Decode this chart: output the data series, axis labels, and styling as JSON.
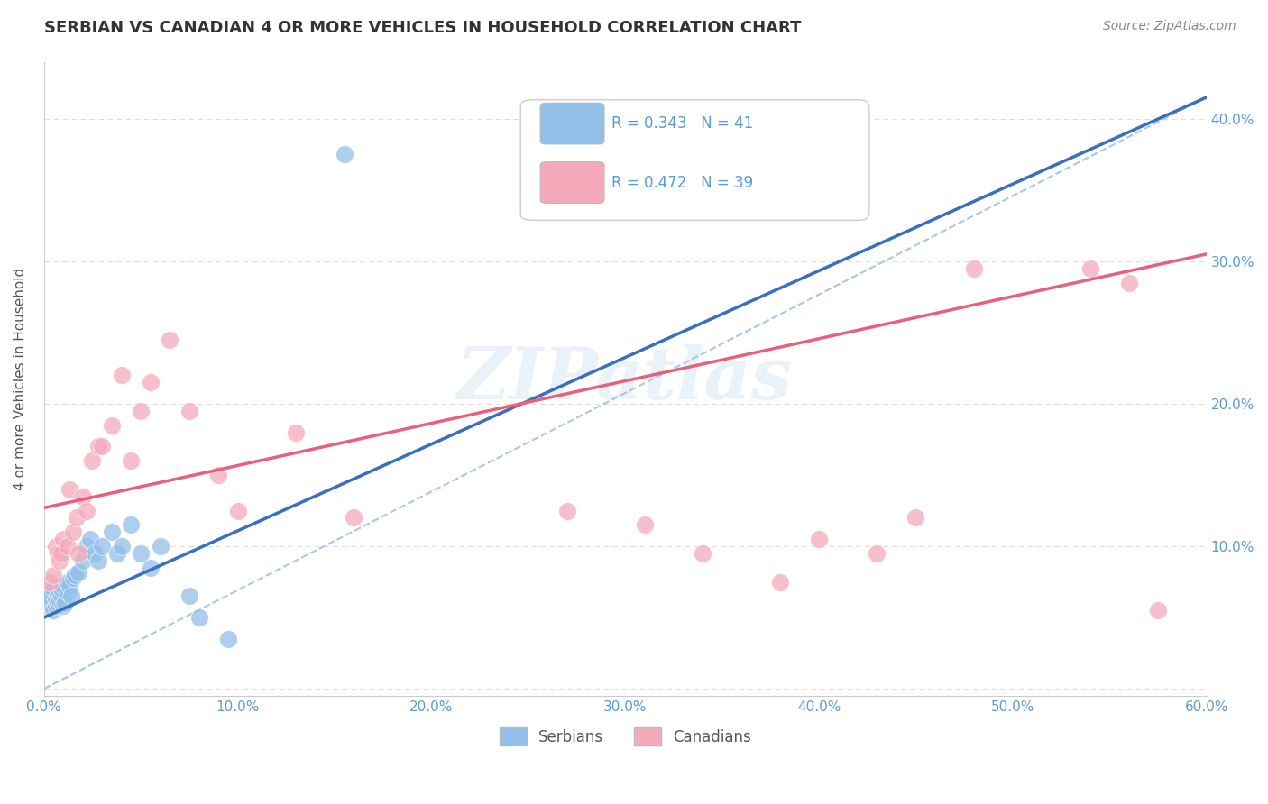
{
  "title": "SERBIAN VS CANADIAN 4 OR MORE VEHICLES IN HOUSEHOLD CORRELATION CHART",
  "source": "Source: ZipAtlas.com",
  "ylabel": "4 or more Vehicles in Household",
  "xlim": [
    0.0,
    0.6
  ],
  "ylim": [
    -0.005,
    0.44
  ],
  "xticks": [
    0.0,
    0.1,
    0.2,
    0.3,
    0.4,
    0.5,
    0.6
  ],
  "yticks": [
    0.0,
    0.1,
    0.2,
    0.3,
    0.4
  ],
  "xticklabels": [
    "0.0%",
    "10.0%",
    "20.0%",
    "30.0%",
    "40.0%",
    "50.0%",
    "60.0%"
  ],
  "yticklabels": [
    "",
    "10.0%",
    "20.0%",
    "30.0%",
    "40.0%"
  ],
  "blue_color": "#92C0E8",
  "pink_color": "#F5AABC",
  "blue_line_color": "#3A6FBF",
  "pink_line_color": "#E8607A",
  "dashed_line_color": "#A8C8E8",
  "r_blue": 0.343,
  "n_blue": 41,
  "r_pink": 0.472,
  "n_pink": 39,
  "watermark": "ZIPatlas",
  "legend_serbians": "Serbians",
  "legend_canadians": "Canadians",
  "blue_scatter_x": [
    0.002,
    0.003,
    0.004,
    0.004,
    0.005,
    0.005,
    0.006,
    0.006,
    0.007,
    0.007,
    0.008,
    0.008,
    0.009,
    0.009,
    0.01,
    0.01,
    0.011,
    0.012,
    0.012,
    0.013,
    0.014,
    0.015,
    0.016,
    0.018,
    0.02,
    0.022,
    0.024,
    0.026,
    0.028,
    0.03,
    0.035,
    0.038,
    0.04,
    0.045,
    0.05,
    0.055,
    0.06,
    0.075,
    0.08,
    0.095,
    0.155
  ],
  "blue_scatter_y": [
    0.06,
    0.065,
    0.062,
    0.068,
    0.055,
    0.07,
    0.058,
    0.063,
    0.06,
    0.065,
    0.062,
    0.068,
    0.065,
    0.07,
    0.058,
    0.072,
    0.06,
    0.068,
    0.075,
    0.072,
    0.065,
    0.078,
    0.08,
    0.082,
    0.09,
    0.1,
    0.105,
    0.095,
    0.09,
    0.1,
    0.11,
    0.095,
    0.1,
    0.115,
    0.095,
    0.085,
    0.1,
    0.065,
    0.05,
    0.035,
    0.375
  ],
  "pink_scatter_x": [
    0.003,
    0.005,
    0.006,
    0.007,
    0.008,
    0.009,
    0.01,
    0.012,
    0.013,
    0.015,
    0.017,
    0.018,
    0.02,
    0.022,
    0.025,
    0.028,
    0.03,
    0.035,
    0.04,
    0.045,
    0.05,
    0.055,
    0.065,
    0.075,
    0.09,
    0.1,
    0.13,
    0.16,
    0.27,
    0.31,
    0.34,
    0.38,
    0.4,
    0.43,
    0.45,
    0.48,
    0.54,
    0.56,
    0.575
  ],
  "pink_scatter_y": [
    0.075,
    0.08,
    0.1,
    0.095,
    0.09,
    0.095,
    0.105,
    0.1,
    0.14,
    0.11,
    0.12,
    0.095,
    0.135,
    0.125,
    0.16,
    0.17,
    0.17,
    0.185,
    0.22,
    0.16,
    0.195,
    0.215,
    0.245,
    0.195,
    0.15,
    0.125,
    0.18,
    0.12,
    0.125,
    0.115,
    0.095,
    0.075,
    0.105,
    0.095,
    0.12,
    0.295,
    0.295,
    0.285,
    0.055
  ],
  "blue_line_x0": 0.0,
  "blue_line_y0": 0.05,
  "blue_line_x1": 0.6,
  "blue_line_y1": 0.415,
  "pink_line_x0": 0.0,
  "pink_line_y0": 0.127,
  "pink_line_x1": 0.6,
  "pink_line_y1": 0.305,
  "dash_line_x0": 0.0,
  "dash_line_y0": 0.0,
  "dash_line_x1": 0.6,
  "dash_line_y1": 0.415,
  "grid_color": "#DDDDDD",
  "background_color": "#FFFFFF",
  "tick_color": "#5B9BD5"
}
